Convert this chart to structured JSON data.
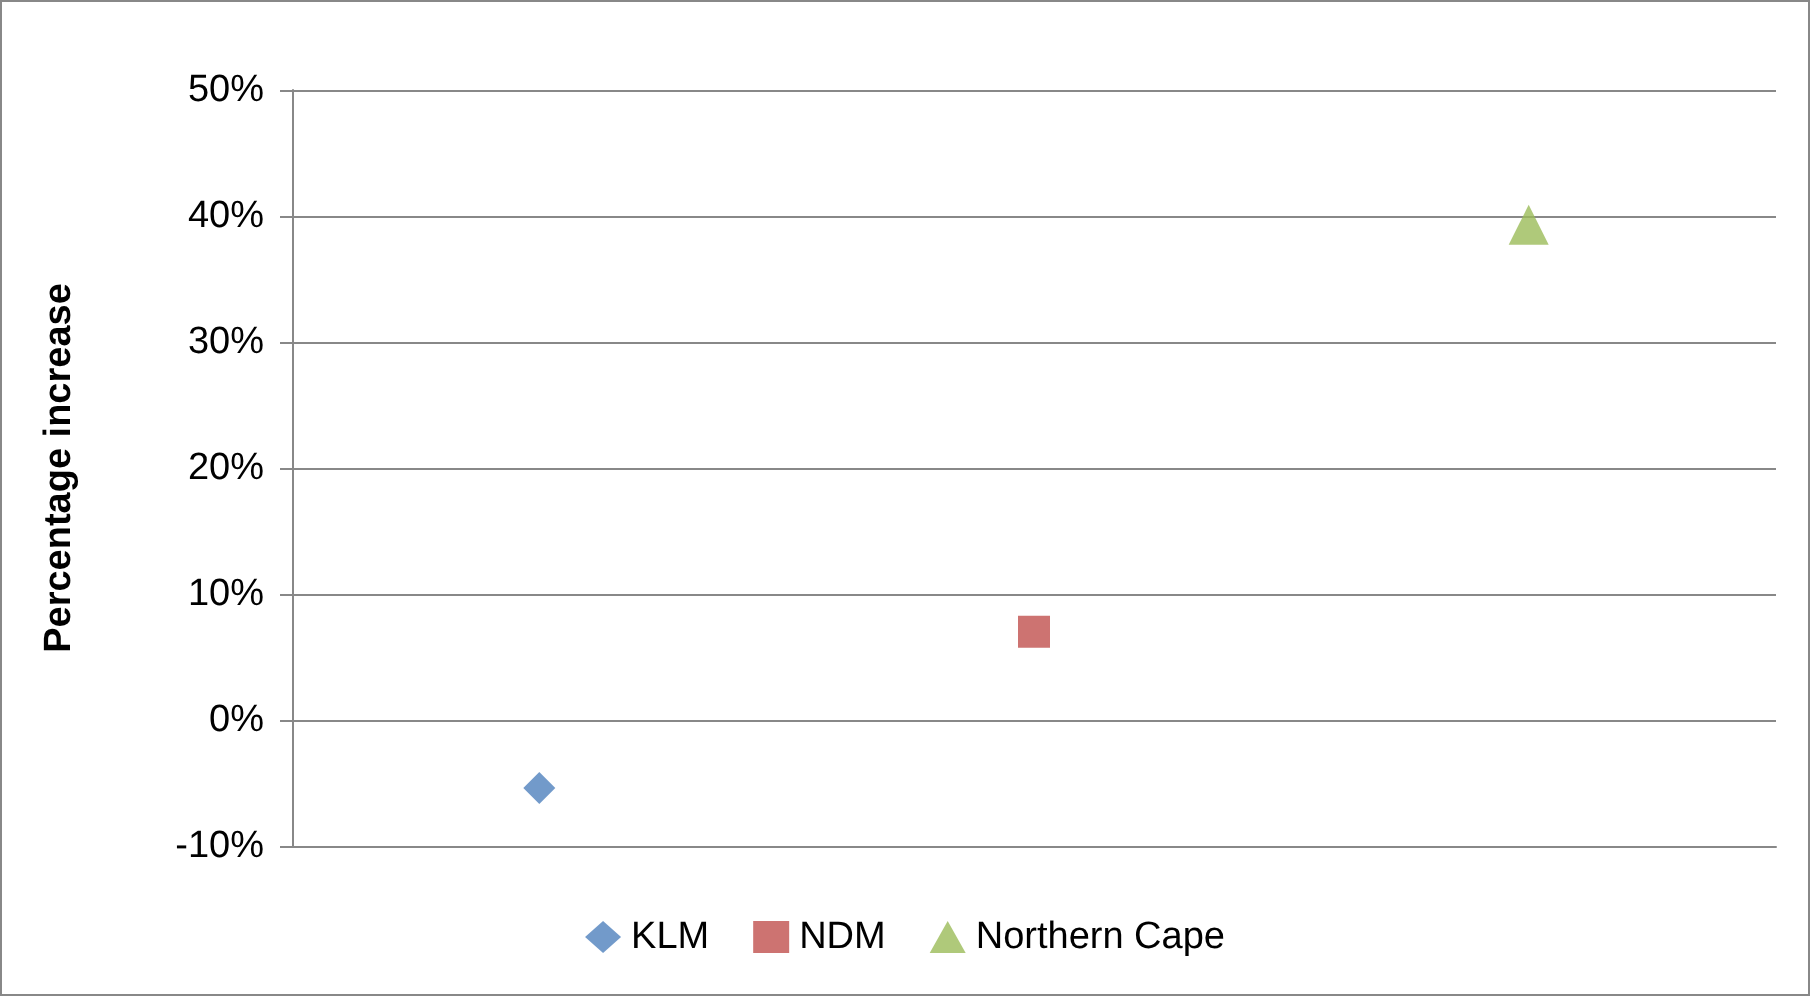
{
  "chart_data": {
    "type": "scatter",
    "ylabel": "Percentage increase",
    "categories": [
      null,
      null,
      null
    ],
    "series": [
      {
        "name": "KLM",
        "color": "#4f81bd",
        "marker": "diamond",
        "values": [
          -5.4,
          null,
          null
        ]
      },
      {
        "name": "NDM",
        "color": "#c0504d",
        "marker": "square",
        "values": [
          null,
          7,
          null
        ]
      },
      {
        "name": "Northern Cape",
        "color": "#9bbb59",
        "marker": "triangle",
        "values": [
          null,
          null,
          39.3
        ]
      }
    ],
    "ylim": [
      -10,
      50
    ],
    "yticks": [
      {
        "value": -10,
        "label": "-10%"
      },
      {
        "value": 0,
        "label": "0%"
      },
      {
        "value": 10,
        "label": "10%"
      },
      {
        "value": 20,
        "label": "20%"
      },
      {
        "value": 30,
        "label": "30%"
      },
      {
        "value": 40,
        "label": "40%"
      },
      {
        "value": 50,
        "label": "50%"
      }
    ],
    "grid": "y",
    "legend": "bottom"
  }
}
